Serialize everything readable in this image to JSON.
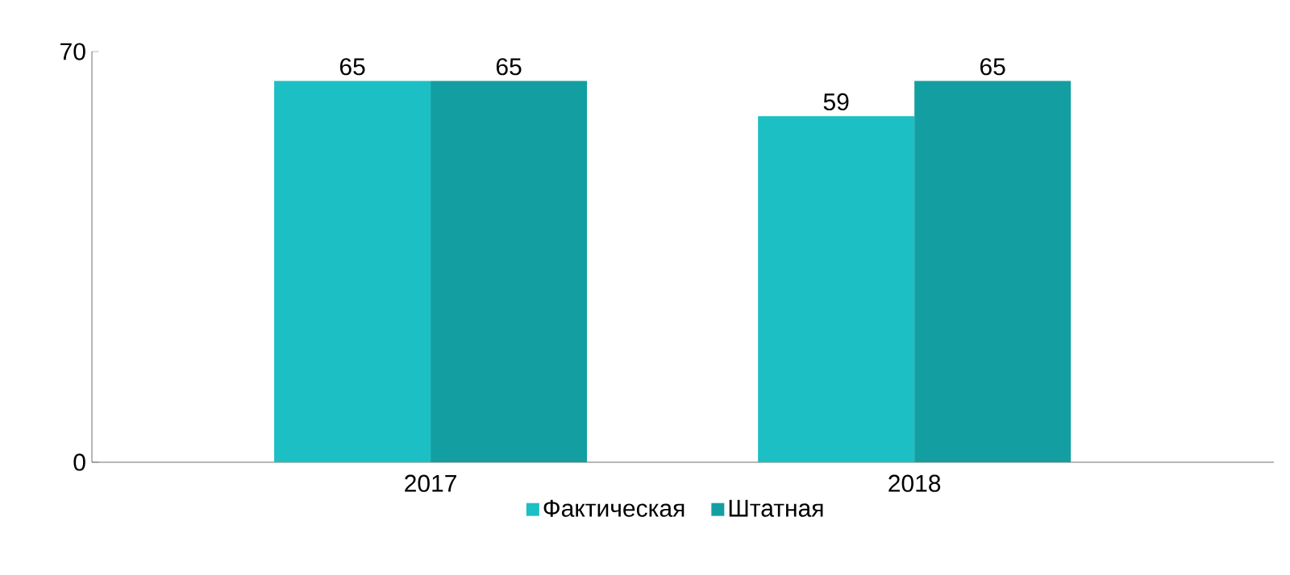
{
  "chart_data": {
    "type": "bar",
    "categories": [
      "2017",
      "2018"
    ],
    "series": [
      {
        "name": "Фактическая",
        "color": "#1cbfc4",
        "values": [
          65,
          59
        ]
      },
      {
        "name": "Штатная",
        "color": "#139fa2",
        "values": [
          65,
          65
        ]
      }
    ],
    "ylim": [
      0,
      70
    ],
    "yticks": [
      0,
      70
    ],
    "data_labels": true,
    "legend": "bottom",
    "grid": false
  }
}
